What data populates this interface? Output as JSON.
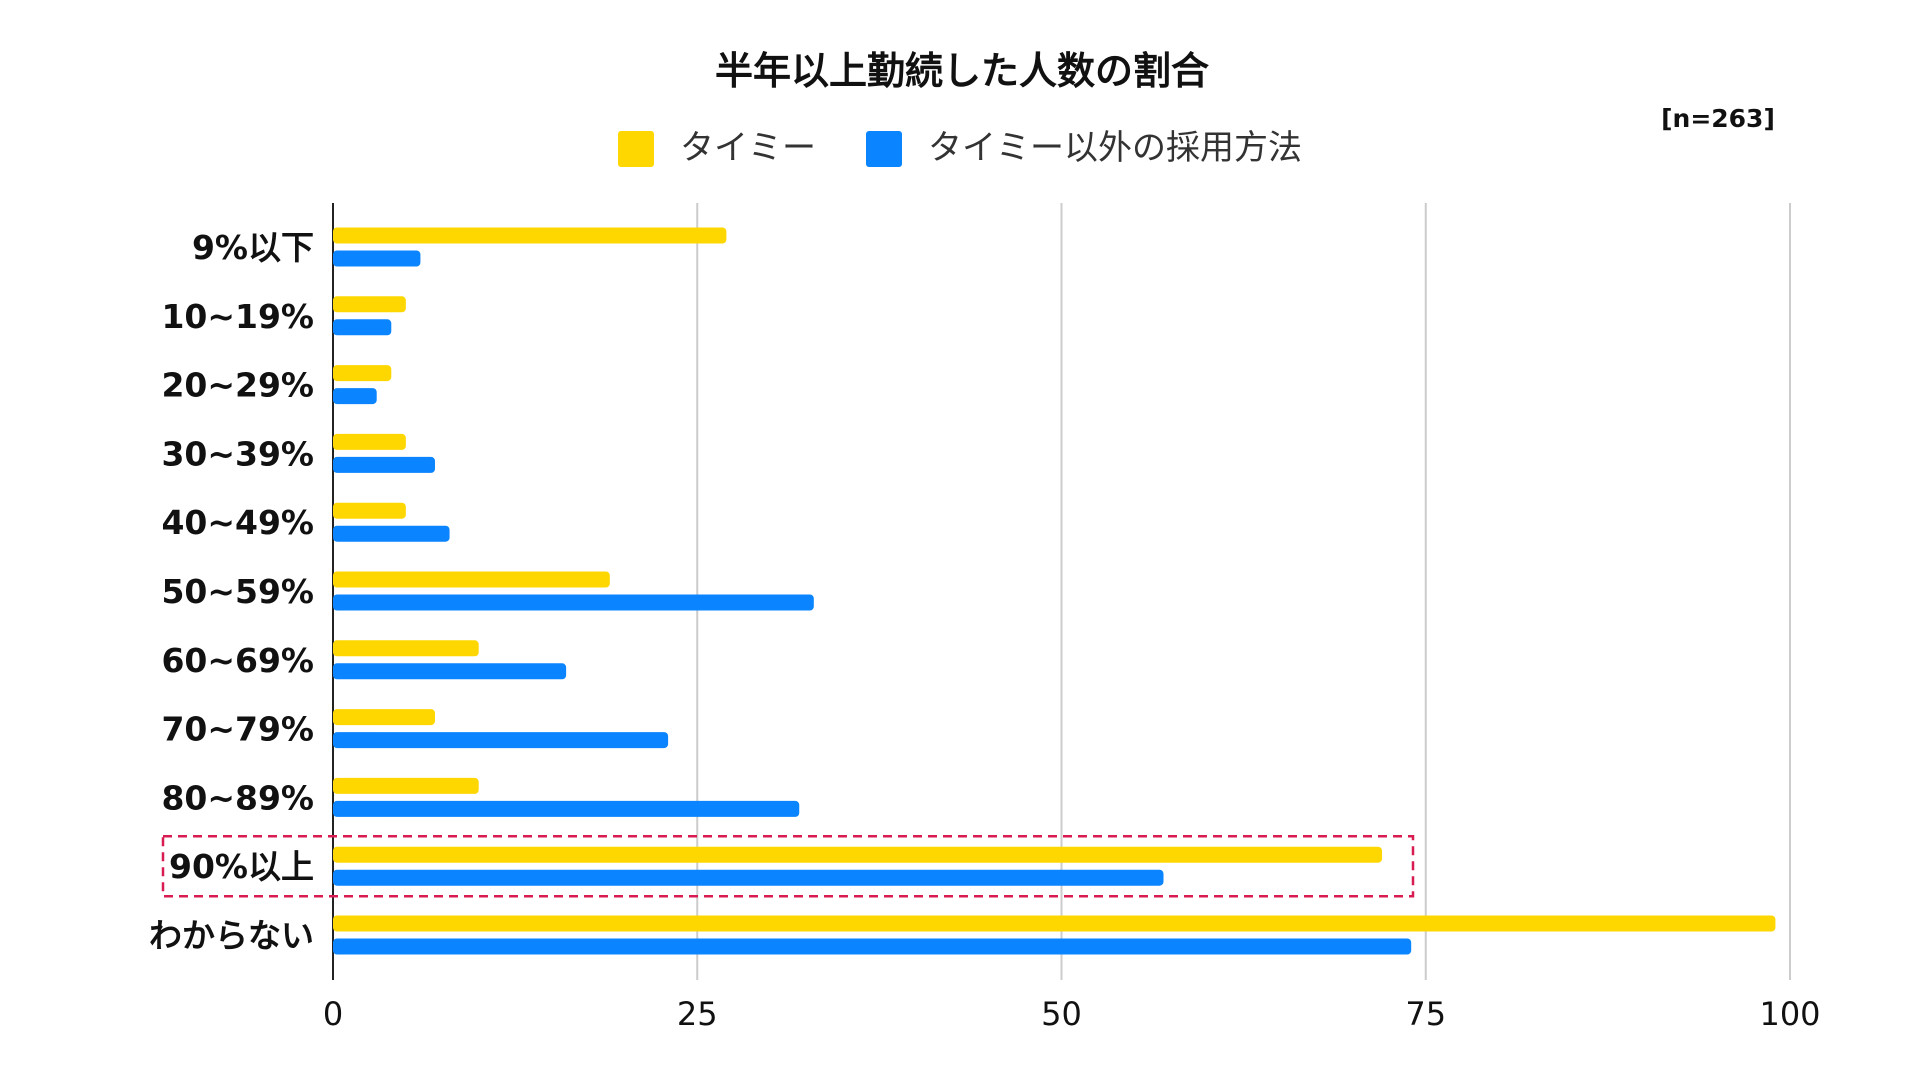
{
  "chart_data": {
    "type": "bar",
    "orientation": "horizontal",
    "title": "半年以上勤続した人数の割合",
    "sample_note": "[n=263]",
    "categories": [
      "9%以下",
      "10~19%",
      "20~29%",
      "30~39%",
      "40~49%",
      "50~59%",
      "60~69%",
      "70~79%",
      "80~89%",
      "90%以上",
      "わからない"
    ],
    "series": [
      {
        "name": "タイミー",
        "color": "#FFD700",
        "values": [
          27,
          5,
          4,
          5,
          5,
          19,
          10,
          7,
          10,
          72,
          99
        ]
      },
      {
        "name": "タイミー以外の採用方法",
        "color": "#0A84FF",
        "values": [
          6,
          4,
          3,
          7,
          8,
          33,
          16,
          23,
          32,
          57,
          74
        ]
      }
    ],
    "xlim": [
      0,
      100
    ],
    "x_ticks": [
      0,
      25,
      50,
      75,
      100
    ],
    "grid": true,
    "legend_position": "top-center",
    "highlighted_category": "90%以上",
    "highlight_color": "#d81b50"
  }
}
